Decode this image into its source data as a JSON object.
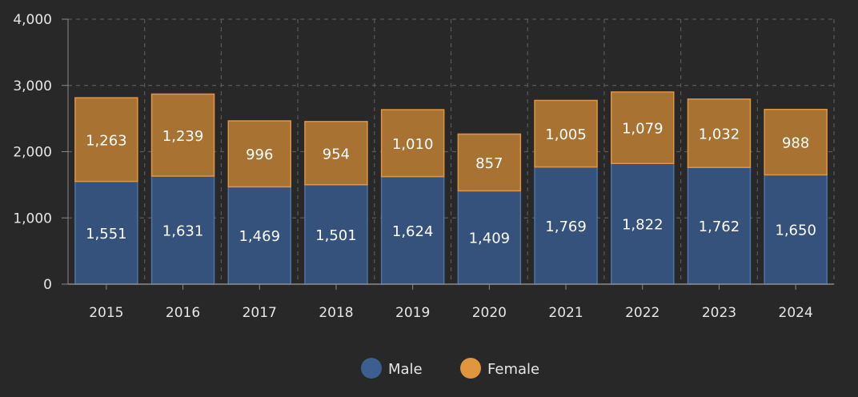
{
  "chart_data": {
    "type": "bar",
    "stacked": true,
    "categories": [
      "2015",
      "2016",
      "2017",
      "2018",
      "2019",
      "2020",
      "2021",
      "2022",
      "2023",
      "2024"
    ],
    "series": [
      {
        "name": "Male",
        "color": "#3d5f90",
        "values": [
          1551,
          1631,
          1469,
          1501,
          1624,
          1409,
          1769,
          1822,
          1762,
          1650
        ]
      },
      {
        "name": "Female",
        "color": "#bd7b35",
        "values": [
          1263,
          1239,
          996,
          954,
          1010,
          857,
          1005,
          1079,
          1032,
          988
        ]
      }
    ],
    "data_labels": {
      "Male": [
        "1,551",
        "1,631",
        "1,469",
        "1,501",
        "1,624",
        "1,409",
        "1,769",
        "1,822",
        "1,762",
        "1,650"
      ],
      "Female": [
        "1,263",
        "1,239",
        "996",
        "954",
        "1,010",
        "857",
        "1,005",
        "1,079",
        "1,032",
        "988"
      ]
    },
    "yticks": [
      0,
      1000,
      2000,
      3000,
      4000
    ],
    "ytick_labels": [
      "0",
      "1,000",
      "2,000",
      "3,000",
      "4,000"
    ],
    "ylim": [
      0,
      4000
    ],
    "grid": true,
    "legend_position": "bottom-center"
  }
}
